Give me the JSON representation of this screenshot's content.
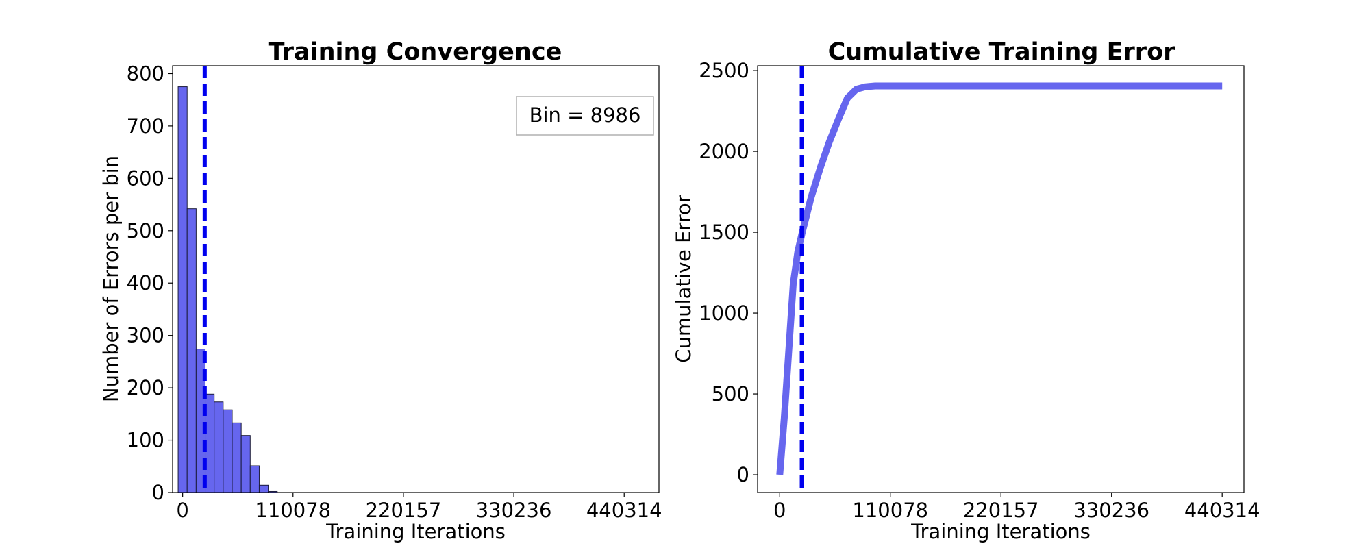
{
  "chart_data": [
    {
      "type": "bar",
      "title": "Training Convergence",
      "xlabel": "Training Iterations",
      "ylabel": "Number of Errors per bin",
      "xlim": [
        -10000,
        475000
      ],
      "ylim": [
        0,
        815
      ],
      "xticks": [
        0,
        110078,
        220157,
        330236,
        440314
      ],
      "xtick_labels": [
        "0",
        "110078",
        "220157",
        "330236",
        "440314"
      ],
      "yticks": [
        0,
        100,
        200,
        300,
        400,
        500,
        600,
        700,
        800
      ],
      "ytick_labels": [
        "0",
        "100",
        "200",
        "300",
        "400",
        "500",
        "600",
        "700",
        "800"
      ],
      "bin_width": 8986,
      "bin_starts": [
        -4493,
        4493,
        13479,
        22465,
        31451,
        40437,
        49423,
        58409,
        67395,
        76381,
        85367
      ],
      "values": [
        775,
        542,
        274,
        188,
        173,
        158,
        133,
        109,
        51,
        14,
        2
      ],
      "vline_x": 22000,
      "bar_color": "#6666ee",
      "bar_edge_color": "#1a1a3a",
      "vline_color": "#0000ee",
      "legend_text": "Bin = 8986",
      "legend_position": "upper right",
      "grid": false
    },
    {
      "type": "line",
      "title": "Cumulative Training Error",
      "xlabel": "Training Iterations",
      "ylabel": "Cumulative Error",
      "xlim": [
        -22000,
        462000
      ],
      "ylim": [
        -110,
        2530
      ],
      "xticks": [
        0,
        110078,
        220157,
        330236,
        440314
      ],
      "xtick_labels": [
        "0",
        "110078",
        "220157",
        "330236",
        "440314"
      ],
      "yticks": [
        0,
        500,
        1000,
        1500,
        2000,
        2500
      ],
      "ytick_labels": [
        "0",
        "500",
        "1000",
        "1500",
        "2000",
        "2500"
      ],
      "x": [
        0,
        4493,
        13479,
        18000,
        22465,
        31451,
        40437,
        49423,
        58409,
        67395,
        76381,
        85367,
        95000,
        440314
      ],
      "y": [
        0,
        350,
        1180,
        1380,
        1500,
        1720,
        1900,
        2060,
        2200,
        2330,
        2385,
        2400,
        2405,
        2405
      ],
      "vline_x": 22000,
      "line_color": "#6666ee",
      "vline_color": "#0000ee",
      "grid": false
    }
  ]
}
